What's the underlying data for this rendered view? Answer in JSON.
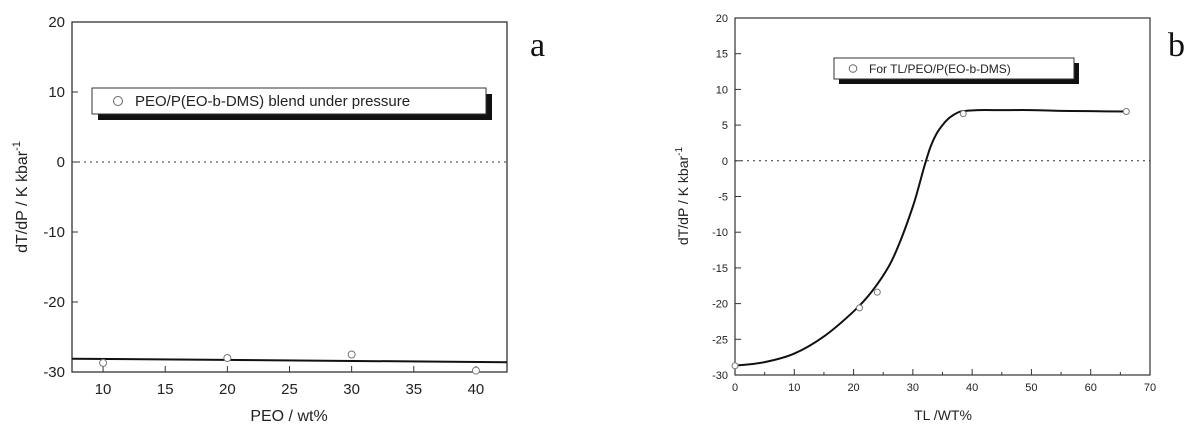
{
  "chart_data": [
    {
      "type": "scatter",
      "panel_label": "a",
      "xlabel": "PEO / wt%",
      "ylabel": "dT/dP / K kbar",
      "ylabel_sup": "-1",
      "xlim": [
        7.5,
        42.5
      ],
      "ylim": [
        -30,
        20
      ],
      "xticks": [
        10,
        15,
        20,
        25,
        30,
        35,
        40
      ],
      "yticks": [
        -30,
        -20,
        -10,
        0,
        10,
        20
      ],
      "zero_line": "dotted",
      "legend_position": "top-center",
      "series": [
        {
          "name": "PEO/P(EO-b-DMS) blend under pressure",
          "x": [
            10,
            20,
            30,
            40
          ],
          "y": [
            -28.7,
            -28.0,
            -27.5,
            -29.8
          ]
        }
      ],
      "fit_line": {
        "x": [
          7.5,
          42.5
        ],
        "y": [
          -28.1,
          -28.6
        ]
      }
    },
    {
      "type": "scatter",
      "panel_label": "b",
      "xlabel": "TL /WT%",
      "ylabel": "dT/dP / K kbar",
      "ylabel_sup": "-1",
      "xlim": [
        0,
        70
      ],
      "ylim": [
        -30,
        20
      ],
      "xticks": [
        0,
        10,
        20,
        30,
        40,
        50,
        60,
        70
      ],
      "yticks": [
        -30,
        -25,
        -20,
        -15,
        -10,
        -5,
        0,
        5,
        10,
        15,
        20
      ],
      "zero_line": "dotted",
      "legend_position": "top-center",
      "series": [
        {
          "name": "For TL/PEO/P(EO-b-DMS)",
          "x": [
            0,
            21,
            24,
            38.5,
            66
          ],
          "y": [
            -28.7,
            -20.6,
            -18.4,
            6.6,
            6.9
          ]
        }
      ],
      "fit_line": {
        "x": [
          0,
          5,
          10,
          15,
          20,
          23,
          26,
          28,
          30,
          31,
          32,
          33,
          34,
          35,
          36,
          37,
          38,
          39,
          41,
          45,
          50,
          55,
          60,
          66
        ],
        "y": [
          -28.7,
          -28.2,
          -27.0,
          -24.6,
          -21.1,
          -18.4,
          -14.7,
          -11.0,
          -6.4,
          -3.6,
          -0.6,
          2.0,
          3.8,
          5.0,
          5.9,
          6.5,
          6.9,
          7.0,
          7.1,
          7.1,
          7.1,
          7.0,
          6.95,
          6.9
        ]
      }
    }
  ]
}
